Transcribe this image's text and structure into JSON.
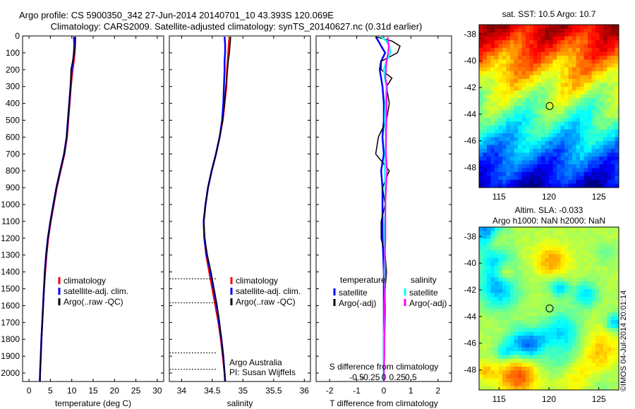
{
  "header": {
    "line1": "Argo profile: CS 5900350_342 27-Jun-2014 20140701_10 43.393S 120.069E",
    "line2": "Climatology: CARS2009. Satellite-adjusted climatology: synTS_20140627.nc (0.31d earlier)"
  },
  "timestamp": "©IMOS 04-Jul-2014 20:01:14",
  "colors": {
    "climatology": "#ff0000",
    "satellite": "#0000ff",
    "argo": "#000000",
    "sal_satellite": "#00ffff",
    "sal_argo": "#ff00ff"
  },
  "chart_data": [
    {
      "type": "line",
      "xlabel": "temperature (deg C)",
      "ylim": [
        2050,
        0
      ],
      "xlim": [
        -1.5,
        31.5
      ],
      "xticks": [
        "0",
        "5",
        "10",
        "15",
        "20",
        "25",
        "30"
      ],
      "yticks": [
        "0",
        "100",
        "200",
        "300",
        "400",
        "500",
        "600",
        "700",
        "800",
        "900",
        "1000",
        "1100",
        "1200",
        "1300",
        "1400",
        "1500",
        "1600",
        "1700",
        "1800",
        "1900",
        "2000"
      ],
      "legend": [
        "climatology",
        "satellite-adj. clim.",
        "Argo(..raw -QC)"
      ],
      "depth": [
        5,
        50,
        100,
        150,
        200,
        300,
        400,
        500,
        600,
        700,
        800,
        900,
        1000,
        1100,
        1200,
        1300,
        1400,
        1500,
        1600,
        1700,
        1800,
        1900,
        2000,
        2050
      ],
      "series": [
        {
          "name": "climatology",
          "values": [
            10.8,
            10.8,
            10.7,
            10.5,
            10.2,
            9.8,
            9.5,
            9.2,
            8.9,
            8.3,
            7.4,
            6.5,
            5.8,
            5.1,
            4.5,
            4.1,
            3.8,
            3.5,
            3.3,
            3.1,
            2.9,
            2.75,
            2.6,
            2.55
          ]
        },
        {
          "name": "satellite-adj. clim.",
          "values": [
            10.5,
            10.6,
            10.5,
            10.3,
            10.0,
            9.7,
            9.4,
            9.1,
            8.8,
            8.2,
            7.3,
            6.4,
            5.7,
            5.0,
            4.4,
            4.0,
            3.7,
            3.5,
            3.3,
            3.1,
            2.9,
            2.75,
            2.6,
            2.55
          ]
        },
        {
          "name": "Argo(..raw -QC)",
          "values": [
            10.9,
            10.8,
            10.6,
            10.2,
            9.8,
            9.7,
            9.4,
            9.1,
            8.8,
            8.2,
            7.3,
            6.4,
            5.7,
            5.0,
            4.4,
            4.0,
            3.7,
            3.5,
            3.3,
            3.1,
            2.9,
            2.75,
            2.6,
            2.55
          ]
        }
      ]
    },
    {
      "type": "line",
      "xlabel": "salinity",
      "ylim": [
        2050,
        0
      ],
      "xlim": [
        33.8,
        36.1
      ],
      "xticks": [
        "34",
        "34.5",
        "35",
        "35.5",
        "36"
      ],
      "legend": [
        "climatology",
        "satellite-adj. clim.",
        "Argo(..raw -QC)"
      ],
      "annotations": [
        "Argo Australia",
        "PI: Susan Wijffels"
      ],
      "depth": [
        5,
        50,
        100,
        150,
        200,
        300,
        400,
        500,
        600,
        700,
        800,
        900,
        1000,
        1100,
        1200,
        1300,
        1400,
        1500,
        1600,
        1700,
        1800,
        1900,
        2000,
        2050
      ],
      "series": [
        {
          "name": "climatology",
          "values": [
            34.78,
            34.77,
            34.76,
            34.75,
            34.74,
            34.73,
            34.7,
            34.67,
            34.62,
            34.56,
            34.49,
            34.43,
            34.39,
            34.36,
            34.37,
            34.4,
            34.45,
            34.5,
            34.55,
            34.6,
            34.64,
            34.67,
            34.7,
            34.71
          ]
        },
        {
          "name": "satellite-adj. clim.",
          "values": [
            34.7,
            34.71,
            34.71,
            34.7,
            34.7,
            34.69,
            34.68,
            34.66,
            34.62,
            34.56,
            34.49,
            34.43,
            34.39,
            34.36,
            34.37,
            34.41,
            34.47,
            34.52,
            34.57,
            34.61,
            34.65,
            34.68,
            34.7,
            34.71
          ]
        },
        {
          "name": "Argo(..raw -QC)",
          "values": [
            34.8,
            34.79,
            34.78,
            34.76,
            34.75,
            34.72,
            34.7,
            34.67,
            34.62,
            34.56,
            34.49,
            34.43,
            34.39,
            34.36,
            34.38,
            34.42,
            34.48,
            34.53,
            34.58,
            34.62,
            34.65,
            34.68,
            34.7,
            34.71
          ]
        }
      ]
    },
    {
      "type": "line",
      "xlabel": "T difference from climatology",
      "top_xlabel": "S difference from climatology",
      "ylim": [
        2050,
        0
      ],
      "xlim": [
        -2.5,
        2.5
      ],
      "xticks": [
        "-2",
        "-1",
        "0",
        "1",
        "2"
      ],
      "top_xticks": [
        "-0.5",
        "-0.25",
        "0",
        "0.25",
        "0.5"
      ],
      "legend_headers": [
        "temperature",
        "salinity"
      ],
      "legend": [
        "satellite",
        "Argo(-adj)",
        "satellite",
        "Argo(-adj)"
      ],
      "depth": [
        5,
        30,
        60,
        100,
        150,
        200,
        250,
        300,
        400,
        500,
        600,
        700,
        800,
        900,
        1000,
        1100,
        1200,
        1300,
        1400,
        1500,
        1600,
        1700,
        1800,
        1900,
        2000,
        2050
      ],
      "series": [
        {
          "name": "temperature satellite",
          "values": [
            -0.3,
            -0.2,
            -0.1,
            0.05,
            -0.1,
            -0.15,
            -0.1,
            -0.05,
            0,
            0,
            -0.05,
            0,
            -0.1,
            -0.05,
            -0.05,
            -0.05,
            -0.05,
            -0.02,
            0,
            0,
            0,
            0,
            0,
            0,
            0,
            0
          ]
        },
        {
          "name": "temperature Argo(-adj)",
          "values": [
            -0.3,
            0.3,
            0.6,
            0.5,
            -0.1,
            -0.1,
            0.3,
            0.1,
            0.2,
            0.1,
            -0.2,
            -0.3,
            0.2,
            -0.05,
            0.05,
            -0.1,
            -0.1,
            0.05,
            0.1,
            0.05,
            0.05,
            0.05,
            0,
            0,
            0,
            0
          ]
        },
        {
          "name": "salinity satellite",
          "values": [
            -0.05,
            0.05,
            0.1,
            0.12,
            0.05,
            0.0,
            0.02,
            0.05,
            0.03,
            0.02,
            0.04,
            0.03,
            0.02,
            0.03,
            0.03,
            0.02,
            0.01,
            0.02,
            0.01,
            0.02,
            0.01,
            0.01,
            0,
            0,
            0,
            0
          ]
        },
        {
          "name": "salinity Argo(-adj)",
          "values": [
            0.07,
            0.08,
            0.09,
            0.08,
            0.05,
            0.04,
            0.03,
            0.06,
            0.05,
            0.05,
            0.04,
            0.04,
            0.06,
            0.04,
            0.03,
            0.03,
            0.03,
            0.02,
            0.03,
            0.02,
            0.01,
            0.02,
            0.01,
            0.01,
            0,
            0
          ]
        }
      ]
    },
    {
      "type": "heatmap",
      "title": "sat. SST: 10.5 Argo: 10.7",
      "xlim": [
        113,
        127
      ],
      "ylim": [
        -49.5,
        -37.3
      ],
      "xticks": [
        "115",
        "120",
        "125"
      ],
      "yticks": [
        "-38",
        "-40",
        "-42",
        "-44",
        "-46",
        "-48"
      ],
      "marker": {
        "lon": 120.069,
        "lat": -43.393
      }
    },
    {
      "type": "heatmap",
      "title_line1": "Altim. SLA: -0.033",
      "title_line2": "Argo h1000: NaN h2000: NaN",
      "xlim": [
        113,
        127
      ],
      "ylim": [
        -49.5,
        -37.3
      ],
      "xticks": [
        "115",
        "120",
        "125"
      ],
      "yticks": [
        "-38",
        "-40",
        "-42",
        "-44",
        "-46",
        "-48"
      ],
      "marker": {
        "lon": 120.069,
        "lat": -43.393
      }
    }
  ]
}
